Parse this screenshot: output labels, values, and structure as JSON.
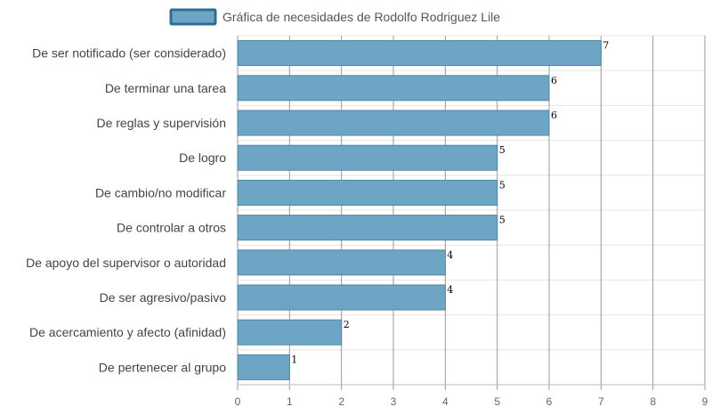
{
  "chart_data": {
    "type": "bar",
    "orientation": "horizontal",
    "categories": [
      "De ser notificado (ser considerado)",
      "De terminar una tarea",
      "De reglas y supervisión",
      "De logro",
      "De cambio/no modificar",
      "De controlar a otros",
      "De apoyo del supervisor o autoridad",
      "De ser agresivo/pasivo",
      "De acercamiento y afecto (afinidad)",
      "De pertenecer al grupo"
    ],
    "series": [
      {
        "name": "Gráfica de necesidades de Rodolfo Rodriguez Lile",
        "values": [
          7,
          6,
          6,
          5,
          5,
          5,
          4,
          4,
          2,
          1
        ]
      }
    ],
    "xlim": [
      0,
      9
    ],
    "ticks": [
      "0",
      "1",
      "2",
      "3",
      "4",
      "5",
      "6",
      "7",
      "8",
      "9"
    ],
    "data_labels": [
      "7",
      "6",
      "6",
      "5",
      "5",
      "5",
      "4",
      "4",
      "2",
      "1"
    ],
    "grid": true,
    "legend": "top",
    "colors": {
      "bar": "#6ea5c4",
      "bar_border": "#4f86a6",
      "legend_border": "#2f6e92"
    }
  }
}
